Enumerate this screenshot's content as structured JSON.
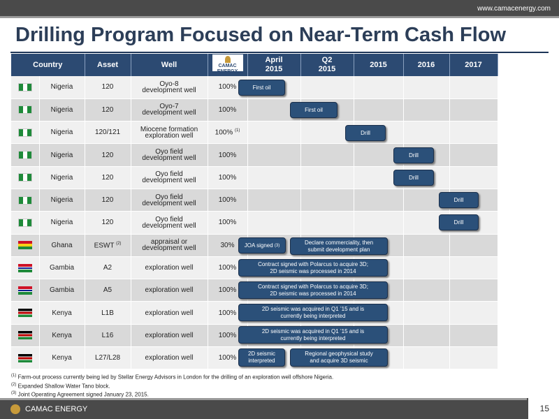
{
  "header": {
    "url": "www.camacenergy.com"
  },
  "title": "Drilling Program Focused on Near-Term Cash Flow",
  "table": {
    "columns": {
      "country": "Country",
      "asset": "Asset",
      "well": "Well",
      "logo_line1": "CAMAC",
      "logo_line2": "ENERGY",
      "april_line1": "April",
      "april_line2": "2015",
      "q2_line1": "Q2",
      "q2_line2": "2015",
      "y2015": "2015",
      "y2016": "2016",
      "y2017": "2017"
    },
    "rows": [
      {
        "flag": "nigeria-flag",
        "country": "Nigeria",
        "asset": "120",
        "well_line1": "Oyo-8",
        "well_line2": "development well",
        "pct": "100%",
        "pct_note": ""
      },
      {
        "flag": "nigeria-flag",
        "country": "Nigeria",
        "asset": "120",
        "well_line1": "Oyo-7",
        "well_line2": "development well",
        "pct": "100%",
        "pct_note": ""
      },
      {
        "flag": "nigeria-flag",
        "country": "Nigeria",
        "asset": "120/121",
        "well_line1": "Miocene formation",
        "well_line2": "exploration well",
        "pct": "100%",
        "pct_note": "(1)"
      },
      {
        "flag": "nigeria-flag",
        "country": "Nigeria",
        "asset": "120",
        "well_line1": "Oyo field",
        "well_line2": "development well",
        "pct": "100%",
        "pct_note": ""
      },
      {
        "flag": "nigeria-flag",
        "country": "Nigeria",
        "asset": "120",
        "well_line1": "Oyo field",
        "well_line2": "development well",
        "pct": "100%",
        "pct_note": ""
      },
      {
        "flag": "nigeria-flag",
        "country": "Nigeria",
        "asset": "120",
        "well_line1": "Oyo field",
        "well_line2": "development well",
        "pct": "100%",
        "pct_note": ""
      },
      {
        "flag": "nigeria-flag",
        "country": "Nigeria",
        "asset": "120",
        "well_line1": "Oyo field",
        "well_line2": "development well",
        "pct": "100%",
        "pct_note": ""
      },
      {
        "flag": "ghana-flag",
        "country": "Ghana",
        "asset": "ESWT",
        "asset_note": "(2)",
        "well_line1": "appraisal or",
        "well_line2": "development well",
        "pct": "30%",
        "pct_note": ""
      },
      {
        "flag": "gambia-flag",
        "country": "Gambia",
        "asset": "A2",
        "well_line1": "exploration well",
        "well_line2": "",
        "pct": "100%",
        "pct_note": ""
      },
      {
        "flag": "gambia-flag",
        "country": "Gambia",
        "asset": "A5",
        "well_line1": "exploration well",
        "well_line2": "",
        "pct": "100%",
        "pct_note": ""
      },
      {
        "flag": "kenya-flag",
        "country": "Kenya",
        "asset": "L1B",
        "well_line1": "exploration well",
        "well_line2": "",
        "pct": "100%",
        "pct_note": ""
      },
      {
        "flag": "kenya-flag",
        "country": "Kenya",
        "asset": "L16",
        "well_line1": "exploration well",
        "well_line2": "",
        "pct": "100%",
        "pct_note": ""
      },
      {
        "flag": "kenya-flag",
        "country": "Kenya",
        "asset": "L27/L28",
        "well_line1": "exploration well",
        "well_line2": "",
        "pct": "100%",
        "pct_note": ""
      }
    ],
    "milestones": {
      "r1": "First oil",
      "r2": "First oil",
      "r3": "Drill",
      "r4": "Drill",
      "r5": "Drill",
      "r6": "Drill",
      "r7": "Drill",
      "r8a": "JOA signed",
      "r8a_note": "(3)",
      "r8b_line1": "Declare commerciality, then",
      "r8b_line2": "submit development plan",
      "r9_line1": "Contract signed with Polarcus to acquire 3D;",
      "r9_line2": "2D seismic was processed in 2014",
      "r10_line1": "Contract signed with Polarcus to acquire 3D;",
      "r10_line2": "2D seismic was processed in 2014",
      "r11_line1": "2D seismic was acquired in Q1 ’15 and is",
      "r11_line2": "currently being interpreted",
      "r12_line1": "2D seismic was acquired in Q1 ’15 and is",
      "r12_line2": "currently being interpreted",
      "r13a_line1": "2D seismic",
      "r13a_line2": "interpreted",
      "r13b_line1": "Regional geophysical study",
      "r13b_line2": "and acquire 3D seismic"
    }
  },
  "footnotes": [
    {
      "mark": "(1)",
      "text": "Farm-out process currently being led by Stellar Energy Advisors in London for the drilling of an exploration well offshore Nigeria."
    },
    {
      "mark": "(2)",
      "text": "Expanded Shallow Water Tano block."
    },
    {
      "mark": "(3)",
      "text": "Joint Operating Agreement signed January 23, 2015."
    }
  ],
  "footer": {
    "brand": "CAMAC ENERGY",
    "page_number": "15"
  },
  "colors": {
    "header_bg": "#2c4a72",
    "pill_bg": "#2b5079",
    "title": "#2c3e58",
    "bar": "#4a4a4a"
  }
}
